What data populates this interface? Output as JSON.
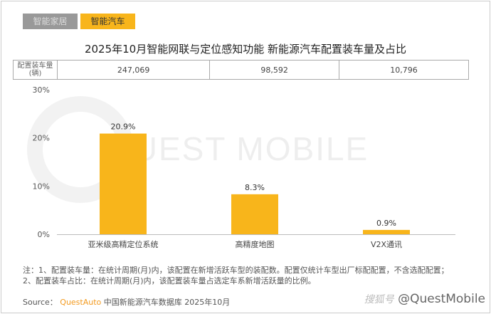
{
  "tabs": [
    "智能家居",
    "智能汽车"
  ],
  "table": {
    "header": "配置装车量\n(辆)",
    "header_l1": "配置装车量",
    "header_l2": "(辆)",
    "values": [
      "247,069",
      "98,592",
      "10,796"
    ]
  },
  "watermark": "QUEST MOBILE",
  "chart_data": {
    "type": "bar",
    "title": "2025年10月智能网联与定位感知功能 新能源汽车配置装车量及占比",
    "categories": [
      "亚米级高精定位系统",
      "高精度地图",
      "V2X通讯"
    ],
    "values": [
      20.9,
      8.3,
      0.9
    ],
    "data_labels": [
      "20.9%",
      "8.3%",
      "0.9%"
    ],
    "ylim": [
      0,
      30
    ],
    "yticks": [
      "0%",
      "10%",
      "20%",
      "30%"
    ],
    "bar_color": "#f8b51b"
  },
  "notes": [
    "注：1、配置装车量：在统计周期(月)内，该配置在新增活跃车型的装配数。配置仅统计车型出厂标配配置，不含选配配置；",
    "2、配置装车占比：在统计周期(月)内，该配置装车量占选定车系新增活跃量的比例。"
  ],
  "source": {
    "label": "Source：",
    "brand": "QuestAuto",
    "text": "中国新能源汽车数据库 2025年10月"
  },
  "brand": {
    "zh": "搜狐号",
    "handle": "@QuestMobile"
  }
}
